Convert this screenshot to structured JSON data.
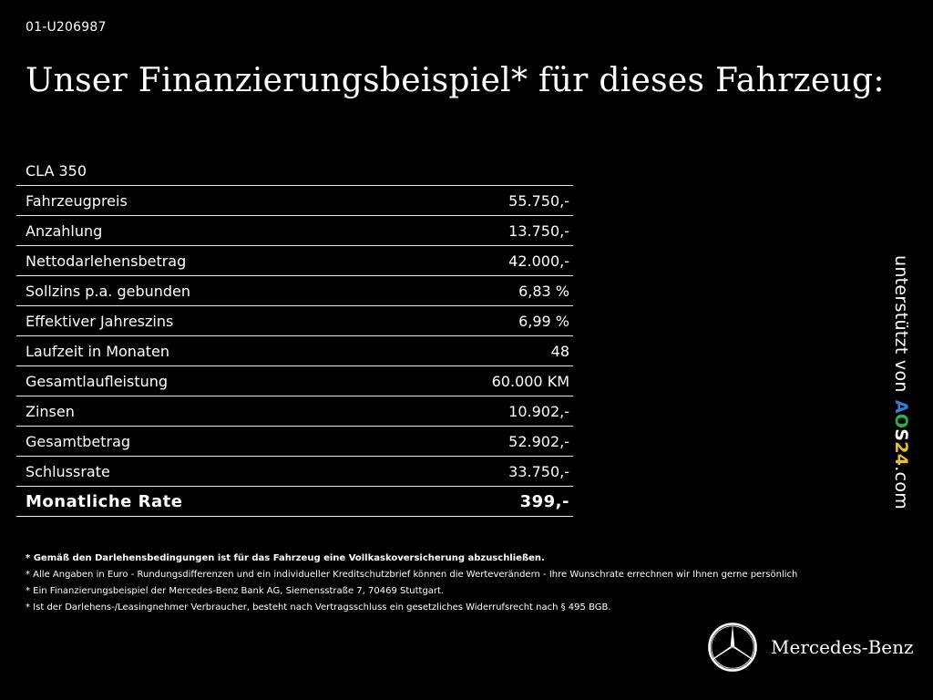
{
  "reference": "01-U206987",
  "headline": "Unser Finanzierungsbeispiel* für dieses Fahrzeug:",
  "model": "CLA 350",
  "rows": [
    {
      "label": "Fahrzeugpreis",
      "value": "55.750,-"
    },
    {
      "label": "Anzahlung",
      "value": "13.750,-"
    },
    {
      "label": "Nettodarlehensbetrag",
      "value": "42.000,-"
    },
    {
      "label": "Sollzins p.a. gebunden",
      "value": "6,83 %"
    },
    {
      "label": "Effektiver Jahreszins",
      "value": "6,99 %"
    },
    {
      "label": "Laufzeit in Monaten",
      "value": "48"
    },
    {
      "label": "Gesamtlaufleistung",
      "value": "60.000 KM"
    },
    {
      "label": "Zinsen",
      "value": "10.902,-"
    },
    {
      "label": "Gesamtbetrag",
      "value": "52.902,-"
    },
    {
      "label": "Schlussrate",
      "value": "33.750,-"
    }
  ],
  "total": {
    "label": "Monatliche Rate",
    "value": "399,-"
  },
  "footnotes": [
    "* Gemäß den Darlehensbedingungen ist für das Fahrzeug eine Vollkaskoversicherung abzuschließen.",
    "* Alle Angaben in Euro - Rundungsdifferenzen und ein individueller Kreditschutzbrief können die Werteverändern - Ihre Wunschrate errechnen wir Ihnen gerne persönlich",
    "* Ein Finanzierungsbeispiel der Mercedes-Benz Bank AG, Siemensstraße 7, 70469 Stuttgart.",
    "* Ist der Darlehens-/Leasingnehmer Verbraucher, besteht nach Vertragsschluss ein gesetzliches Widerrufsrecht nach § 495 BGB."
  ],
  "credit": {
    "prefix": "unterstützt von",
    "brand_parts": [
      "A",
      "O",
      "S",
      "24"
    ],
    "suffix": ".com",
    "brand_colors": [
      "#3a7bd5",
      "#2bb24c",
      "#ffffff",
      "#e8c21a"
    ]
  },
  "logo": {
    "icon": "three-pointed-star-icon",
    "text": "Mercedes-Benz"
  }
}
